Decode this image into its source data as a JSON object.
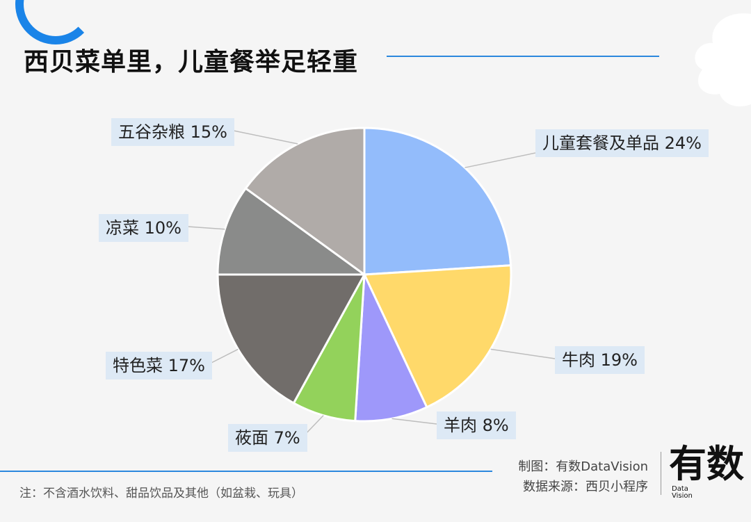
{
  "title": "西贝菜单里，儿童餐举足轻重",
  "chart_data": {
    "type": "pie",
    "title": "",
    "slices": [
      {
        "label": "儿童套餐及单品",
        "value": 24,
        "display": "儿童套餐及单品 24%",
        "color": "#93bcfb"
      },
      {
        "label": "牛肉",
        "value": 19,
        "display": "牛肉 19%",
        "color": "#ffd96a"
      },
      {
        "label": "羊肉",
        "value": 8,
        "display": "羊肉 8%",
        "color": "#9e98fa"
      },
      {
        "label": "莜面",
        "value": 7,
        "display": "莜面 7%",
        "color": "#93d25b"
      },
      {
        "label": "特色菜",
        "value": 17,
        "display": "特色菜 17%",
        "color": "#716d6a"
      },
      {
        "label": "凉菜",
        "value": 10,
        "display": "凉菜 10%",
        "color": "#8a8b8a"
      },
      {
        "label": "五谷杂粮",
        "value": 15,
        "display": "五谷杂粮 15%",
        "color": "#b0aba8"
      }
    ]
  },
  "footer": {
    "note": "注：不含酒水饮料、甜品饮品及其他（如盆栽、玩具）",
    "credit_maker": "制图：有数DataVision",
    "credit_source": "数据来源：西贝小程序",
    "logo_text": "有数",
    "logo_sub1": "Data",
    "logo_sub2": "Vision"
  }
}
